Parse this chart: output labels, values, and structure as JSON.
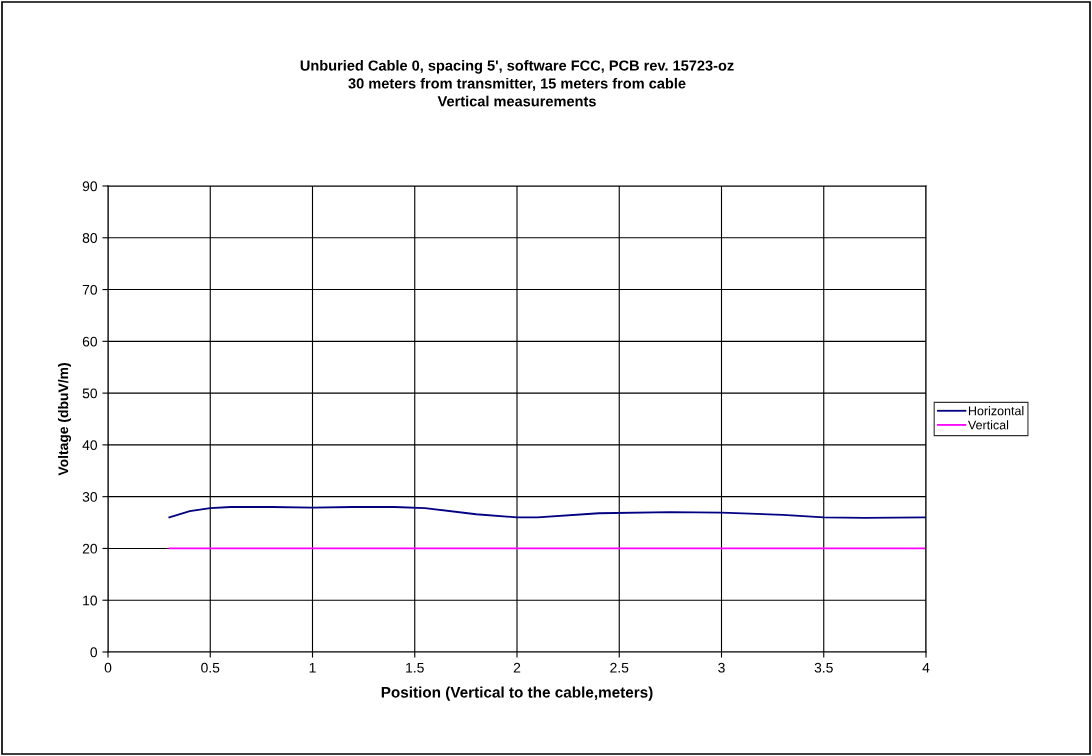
{
  "chart_data": {
    "type": "line",
    "title": "Unburied Cable 0, spacing 5', software FCC, PCB rev. 15723-oz\n30 meters from transmitter, 15 meters from cable\nVertical measurements",
    "xlabel": "Position (Vertical to the cable,meters)",
    "ylabel": "Voltage (dbuV/m)",
    "series": [
      {
        "name": "Horizontal",
        "color": "#000080",
        "x": [
          0.3,
          0.4,
          0.5,
          0.6,
          0.8,
          1.0,
          1.2,
          1.4,
          1.55,
          1.8,
          2.0,
          2.1,
          2.4,
          2.75,
          3.0,
          3.3,
          3.5,
          3.7,
          4.0
        ],
        "values": [
          26,
          27.2,
          27.8,
          28,
          28,
          27.9,
          28,
          28,
          27.8,
          26.6,
          26,
          26,
          26.8,
          27,
          26.9,
          26.5,
          26,
          25.9,
          26
        ]
      },
      {
        "name": "Vertical",
        "color": "#ff00ff",
        "x": [
          0.3,
          4.0
        ],
        "values": [
          20,
          20
        ]
      }
    ],
    "xlim": [
      0,
      4
    ],
    "xticks": [
      0,
      0.5,
      1,
      1.5,
      2,
      2.5,
      3,
      3.5,
      4
    ],
    "ylim": [
      0,
      90
    ],
    "yticks": [
      0,
      10,
      20,
      30,
      40,
      50,
      60,
      70,
      80,
      90
    ],
    "grid": true,
    "legend": "right",
    "marker": "none",
    "line_style": "solid"
  }
}
